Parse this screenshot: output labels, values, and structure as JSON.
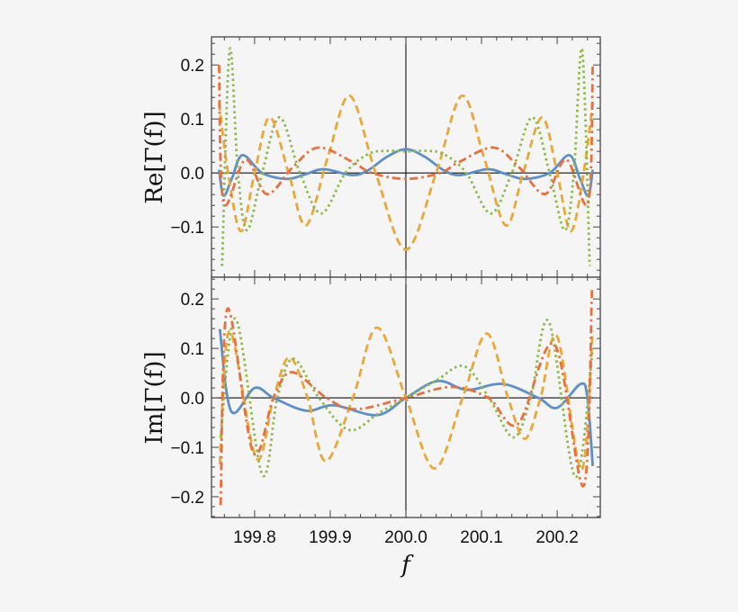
{
  "chart_data": [
    {
      "type": "line",
      "panel": "top",
      "ylabel": "Re[Γ(f)]",
      "xlabel": "",
      "xlim": [
        199.743,
        200.257
      ],
      "ylim": [
        -0.193,
        0.252
      ],
      "yticks": [
        "0.2",
        "0.1",
        "0.0",
        "-0.1"
      ],
      "ytick_values": [
        0.2,
        0.1,
        0.0,
        -0.1
      ],
      "grid": false,
      "colors": [
        "#5e8fc6",
        "#e8a83a",
        "#8fb84a",
        "#e8703e"
      ],
      "styles": [
        "solid",
        "dashed",
        "dotted",
        "dashdot"
      ],
      "series": [
        {
          "points": [
            [
              199.753,
              0.006
            ],
            [
              199.759,
              -0.042
            ],
            [
              199.77,
              -0.01
            ],
            [
              199.784,
              0.033
            ],
            [
              199.81,
              0.0
            ],
            [
              199.843,
              -0.011
            ],
            [
              199.868,
              -0.002
            ],
            [
              199.892,
              0.007
            ],
            [
              199.929,
              -0.004
            ],
            [
              199.95,
              0.005
            ],
            [
              199.975,
              0.03
            ],
            [
              200.0,
              0.044
            ],
            [
              200.025,
              0.03
            ],
            [
              200.05,
              0.005
            ],
            [
              200.071,
              -0.004
            ],
            [
              200.108,
              0.007
            ],
            [
              200.132,
              -0.002
            ],
            [
              200.157,
              -0.011
            ],
            [
              200.19,
              0.0
            ],
            [
              200.216,
              0.033
            ],
            [
              200.23,
              -0.01
            ],
            [
              200.241,
              -0.042
            ],
            [
              200.247,
              0.006
            ]
          ]
        },
        {
          "points": [
            [
              199.753,
              0.13
            ],
            [
              199.765,
              0.0
            ],
            [
              199.782,
              -0.108
            ],
            [
              199.8,
              0.0
            ],
            [
              199.82,
              0.103
            ],
            [
              199.845,
              0.0
            ],
            [
              199.868,
              -0.097
            ],
            [
              199.897,
              0.03
            ],
            [
              199.926,
              0.143
            ],
            [
              199.96,
              0.0
            ],
            [
              200.0,
              -0.142
            ],
            [
              200.04,
              0.0
            ],
            [
              200.074,
              0.143
            ],
            [
              200.103,
              0.03
            ],
            [
              200.132,
              -0.097
            ],
            [
              200.155,
              0.0
            ],
            [
              200.18,
              0.103
            ],
            [
              200.2,
              0.0
            ],
            [
              200.218,
              -0.108
            ],
            [
              200.235,
              0.0
            ],
            [
              200.247,
              0.13
            ]
          ]
        },
        {
          "points": [
            [
              199.757,
              -0.172
            ],
            [
              199.767,
              0.228
            ],
            [
              199.778,
              0.0
            ],
            [
              199.79,
              -0.106
            ],
            [
              199.81,
              0.0
            ],
            [
              199.833,
              0.103
            ],
            [
              199.86,
              0.0
            ],
            [
              199.888,
              -0.075
            ],
            [
              199.92,
              0.0
            ],
            [
              199.95,
              0.035
            ],
            [
              199.975,
              0.041
            ],
            [
              200.0,
              0.04
            ],
            [
              200.025,
              0.041
            ],
            [
              200.05,
              0.035
            ],
            [
              200.08,
              0.0
            ],
            [
              200.112,
              -0.075
            ],
            [
              200.14,
              0.0
            ],
            [
              200.167,
              0.103
            ],
            [
              200.19,
              0.0
            ],
            [
              200.21,
              -0.106
            ],
            [
              200.222,
              0.0
            ],
            [
              200.233,
              0.228
            ],
            [
              200.243,
              -0.172
            ]
          ]
        },
        {
          "points": [
            [
              199.753,
              0.2
            ],
            [
              199.759,
              -0.055
            ],
            [
              199.788,
              0.025
            ],
            [
              199.816,
              -0.039
            ],
            [
              199.85,
              0.01
            ],
            [
              199.884,
              0.047
            ],
            [
              199.93,
              0.02
            ],
            [
              199.955,
              0.0
            ],
            [
              200.0,
              -0.011
            ],
            [
              200.045,
              0.0
            ],
            [
              200.07,
              0.02
            ],
            [
              200.116,
              0.047
            ],
            [
              200.15,
              0.01
            ],
            [
              200.184,
              -0.039
            ],
            [
              200.212,
              0.025
            ],
            [
              200.241,
              -0.055
            ],
            [
              200.247,
              0.2
            ]
          ]
        }
      ]
    },
    {
      "type": "line",
      "panel": "bottom",
      "ylabel": "Im[Γ(f)]",
      "xlabel": "f",
      "xlim": [
        199.743,
        200.257
      ],
      "ylim": [
        -0.242,
        0.244
      ],
      "xticks": [
        "199.8",
        "199.9",
        "200.0",
        "200.1",
        "200.2"
      ],
      "xtick_values": [
        199.8,
        199.9,
        200.0,
        200.1,
        200.2
      ],
      "yticks": [
        "0.2",
        "0.1",
        "0.0",
        "-0.1",
        "-0.2"
      ],
      "ytick_values": [
        0.2,
        0.1,
        0.0,
        -0.1,
        -0.2
      ],
      "grid": false,
      "colors": [
        "#5e8fc6",
        "#e8a83a",
        "#8fb84a",
        "#e8703e"
      ],
      "styles": [
        "solid",
        "dashed",
        "dotted",
        "dashdot"
      ],
      "series": [
        {
          "points": [
            [
              199.754,
              0.139
            ],
            [
              199.769,
              -0.027
            ],
            [
              199.8,
              0.02
            ],
            [
              199.825,
              0.0
            ],
            [
              199.868,
              -0.026
            ],
            [
              199.905,
              -0.015
            ],
            [
              199.962,
              -0.035
            ],
            [
              200.0,
              0.0
            ],
            [
              200.042,
              0.034
            ],
            [
              200.081,
              0.016
            ],
            [
              200.128,
              0.028
            ],
            [
              200.175,
              0.0
            ],
            [
              200.2,
              -0.02
            ],
            [
              200.231,
              0.028
            ],
            [
              200.24,
              0.0
            ],
            [
              200.247,
              -0.138
            ]
          ]
        },
        {
          "points": [
            [
              199.754,
              -0.134
            ],
            [
              199.767,
              0.135
            ],
            [
              199.802,
              -0.122
            ],
            [
              199.825,
              0.0
            ],
            [
              199.846,
              0.082
            ],
            [
              199.87,
              0.0
            ],
            [
              199.894,
              -0.128
            ],
            [
              199.93,
              0.0
            ],
            [
              199.962,
              0.142
            ],
            [
              200.0,
              0.0
            ],
            [
              200.038,
              -0.143
            ],
            [
              200.075,
              0.0
            ],
            [
              200.107,
              0.13
            ],
            [
              200.135,
              0.0
            ],
            [
              200.157,
              -0.083
            ],
            [
              200.178,
              0.0
            ],
            [
              200.2,
              0.124
            ],
            [
              200.232,
              -0.146
            ],
            [
              200.247,
              0.136
            ]
          ]
        },
        {
          "points": [
            [
              199.755,
              -0.08
            ],
            [
              199.775,
              0.16
            ],
            [
              199.81,
              -0.155
            ],
            [
              199.83,
              0.0
            ],
            [
              199.851,
              0.079
            ],
            [
              199.885,
              0.0
            ],
            [
              199.925,
              -0.065
            ],
            [
              199.965,
              -0.03
            ],
            [
              200.0,
              0.0
            ],
            [
              200.04,
              0.035
            ],
            [
              200.077,
              0.064
            ],
            [
              200.11,
              0.0
            ],
            [
              200.142,
              -0.08
            ],
            [
              200.165,
              0.0
            ],
            [
              200.189,
              0.154
            ],
            [
              200.224,
              -0.16
            ],
            [
              200.247,
              0.1
            ]
          ]
        },
        {
          "points": [
            [
              199.755,
              -0.217
            ],
            [
              199.764,
              0.18
            ],
            [
              199.798,
              -0.11
            ],
            [
              199.825,
              0.0
            ],
            [
              199.849,
              0.052
            ],
            [
              199.895,
              0.0
            ],
            [
              199.933,
              -0.023
            ],
            [
              200.0,
              0.0
            ],
            [
              200.06,
              0.022
            ],
            [
              200.109,
              0.0
            ],
            [
              200.148,
              -0.053
            ],
            [
              200.196,
              0.109
            ],
            [
              200.235,
              -0.178
            ],
            [
              200.246,
              0.22
            ]
          ]
        }
      ]
    }
  ]
}
